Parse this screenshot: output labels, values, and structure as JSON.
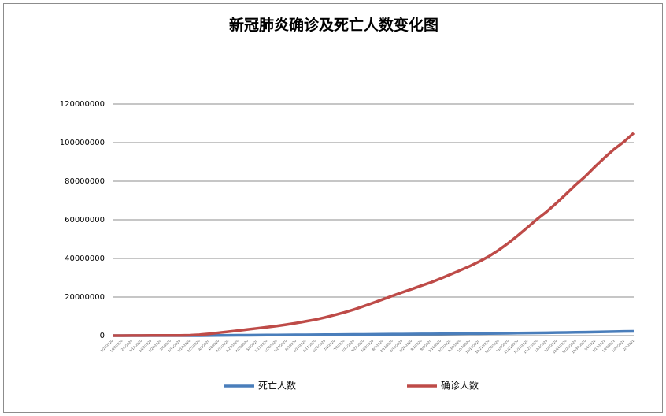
{
  "chart_data": {
    "type": "line",
    "title": "新冠肺炎确诊及死亡人数变化图",
    "x": [
      "1/22/2020",
      "1/29/2020",
      "2/5/2020",
      "2/12/2020",
      "2/19/2020",
      "2/26/2020",
      "3/4/2020",
      "3/11/2020",
      "3/18/2020",
      "3/25/2020",
      "4/1/2020",
      "4/8/2020",
      "4/15/2020",
      "4/22/2020",
      "4/29/2020",
      "5/6/2020",
      "5/13/2020",
      "5/20/2020",
      "5/27/2020",
      "6/3/2020",
      "6/10/2020",
      "6/17/2020",
      "6/24/2020",
      "7/1/2020",
      "7/8/2020",
      "7/15/2020",
      "7/22/2020",
      "7/29/2020",
      "8/5/2020",
      "8/12/2020",
      "8/19/2020",
      "8/26/2020",
      "9/2/2020",
      "9/9/2020",
      "9/16/2020",
      "9/23/2020",
      "9/30/2020",
      "10/7/2020",
      "10/14/2020",
      "10/21/2020",
      "10/28/2020",
      "11/4/2020",
      "11/11/2020",
      "11/18/2020",
      "11/25/2020",
      "12/2/2020",
      "12/9/2020",
      "12/16/2020",
      "12/23/2020",
      "12/30/2020",
      "1/6/2021",
      "1/13/2021",
      "1/20/2021",
      "1/27/2021",
      "2/3/2021"
    ],
    "series": [
      {
        "name": "死亡人数",
        "color": "#4a7ebb",
        "values": [
          17,
          132,
          565,
          1115,
          2122,
          2800,
          3300,
          4300,
          8800,
          21300,
          47000,
          88000,
          134000,
          183000,
          228000,
          265000,
          298000,
          329000,
          356000,
          387000,
          414000,
          446000,
          484000,
          517000,
          551000,
          586000,
          626000,
          667000,
          707000,
          748000,
          788000,
          824000,
          858000,
          891000,
          931000,
          981000,
          1017000,
          1057000,
          1094000,
          1135000,
          1180000,
          1240000,
          1310000,
          1380000,
          1440000,
          1500000,
          1570000,
          1640000,
          1720000,
          1800000,
          1890000,
          1990000,
          2080000,
          2170000,
          2250000
        ]
      },
      {
        "name": "确诊人数",
        "color": "#be4b48",
        "values": [
          555,
          7818,
          28276,
          45171,
          75641,
          83112,
          95123,
          126214,
          214910,
          467594,
          932605,
          1500000,
          2060000,
          2600000,
          3200000,
          3800000,
          4400000,
          5000000,
          5700000,
          6500000,
          7400000,
          8300000,
          9400000,
          10700000,
          12000000,
          13500000,
          15200000,
          17000000,
          18800000,
          20600000,
          22400000,
          24100000,
          25900000,
          27600000,
          29600000,
          31700000,
          33800000,
          36000000,
          38400000,
          41100000,
          44300000,
          47900000,
          51900000,
          56100000,
          60400000,
          64300000,
          68700000,
          73400000,
          78200000,
          82600000,
          87600000,
          92300000,
          96700000,
          100500000,
          105000000
        ]
      }
    ],
    "ylim": [
      0,
      120000000
    ],
    "yticks": [
      0,
      20000000,
      40000000,
      60000000,
      80000000,
      100000000,
      120000000
    ],
    "grid": true,
    "legend": "bottom"
  }
}
